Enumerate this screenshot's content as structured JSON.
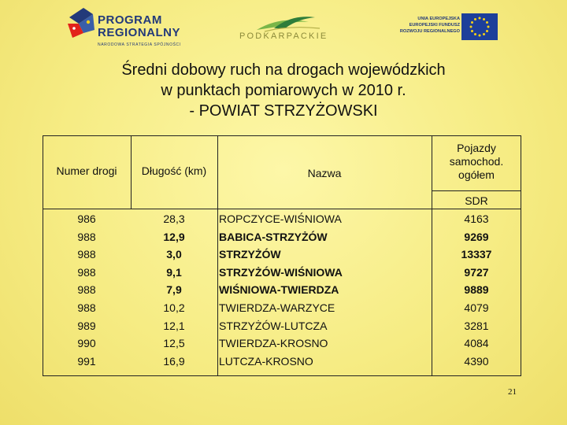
{
  "logos": {
    "program": {
      "line1": "PROGRAM",
      "line2": "REGIONALNY",
      "tagline": "NARODOWA STRATEGIA SPÓJNOŚCI"
    },
    "podkarpackie": {
      "name": "PODKARPACKIE"
    },
    "eu": {
      "line1": "UNIA EUROPEJSKA",
      "line2": "EUROPEJSKI FUNDUSZ",
      "line3": "ROZWOJU REGIONALNEGO"
    }
  },
  "title": {
    "line1": "Średni dobowy ruch na drogach wojewódzkich",
    "line2": "w punktach pomiarowych w 2010 r.",
    "line3": "- POWIAT STRZYŻOWSKI"
  },
  "table": {
    "headers": {
      "number": "Numer drogi",
      "length": "Długość (km)",
      "name": "Nazwa",
      "vehicles_line1": "Pojazdy",
      "vehicles_line2": "samochod.",
      "vehicles_line3": "ogółem",
      "sdr": "SDR"
    },
    "rows": [
      {
        "number": "986",
        "length": "28,3",
        "name": "ROPCZYCE-WIŚNIOWA",
        "sdr": "4163",
        "bold": false
      },
      {
        "number": "988",
        "length": "12,9",
        "name": "BABICA-STRZYŻÓW",
        "sdr": "9269",
        "bold": true
      },
      {
        "number": "988",
        "length": "3,0",
        "name": "STRZYŻÓW",
        "sdr": "13337",
        "bold": true
      },
      {
        "number": "988",
        "length": "9,1",
        "name": "STRZYŻÓW-WIŚNIOWA",
        "sdr": "9727",
        "bold": true
      },
      {
        "number": "988",
        "length": "7,9",
        "name": "WIŚNIOWA-TWIERDZA",
        "sdr": "9889",
        "bold": true
      },
      {
        "number": "988",
        "length": "10,2",
        "name": "TWIERDZA-WARZYCE",
        "sdr": "4079",
        "bold": false
      },
      {
        "number": "989",
        "length": "12,1",
        "name": "STRZYŻÓW-LUTCZA",
        "sdr": "3281",
        "bold": false
      },
      {
        "number": "990",
        "length": "12,5",
        "name": "TWIERDZA-KROSNO",
        "sdr": "4084",
        "bold": false
      },
      {
        "number": "991",
        "length": "16,9",
        "name": "LUTCZA-KROSNO",
        "sdr": "4390",
        "bold": false
      }
    ]
  },
  "page_number": "21"
}
